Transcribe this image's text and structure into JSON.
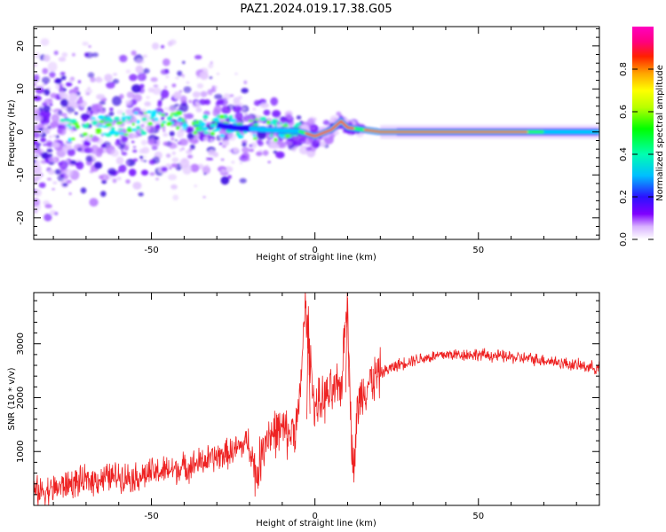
{
  "figure": {
    "title": "PAZ1.2024.019.17.38.G05"
  },
  "chart_data": [
    {
      "type": "heatmap",
      "xlabel": "Height of straight line (km)",
      "ylabel": "Frequency (Hz)",
      "xlim": [
        -86,
        87
      ],
      "ylim": [
        -25,
        24.5
      ],
      "xticks": [
        -50,
        0,
        50
      ],
      "yticks": [
        -20,
        -10,
        0,
        10,
        20
      ],
      "colorbar": {
        "label": "Normalized spectral amplitude",
        "range": [
          0,
          1
        ],
        "ticks": [
          "0.0",
          "0.2",
          "0.4",
          "0.6",
          "0.8"
        ],
        "tick_values": [
          0.0,
          0.2,
          0.4,
          0.6,
          0.8
        ],
        "colormap": "gist_ncar"
      },
      "ridge": [
        [
          -75,
          0.5
        ],
        [
          -65,
          1.5
        ],
        [
          -55,
          2.0
        ],
        [
          -45,
          2.5
        ],
        [
          -35,
          2.2
        ],
        [
          -25,
          1.0
        ],
        [
          -15,
          0.5
        ],
        [
          -10,
          0.3
        ],
        [
          -5,
          0.2
        ],
        [
          0,
          -1.0
        ],
        [
          5,
          0.5
        ],
        [
          8,
          2.5
        ],
        [
          10,
          1.0
        ],
        [
          15,
          0.5
        ],
        [
          20,
          0.0
        ],
        [
          30,
          0.0
        ],
        [
          50,
          0.0
        ],
        [
          70,
          0.0
        ],
        [
          87,
          0.0
        ]
      ],
      "grid": false
    },
    {
      "type": "line",
      "xlabel": "Height of straight line (km)",
      "ylabel": "SNR (10 * v/v)",
      "xlim": [
        -86,
        87
      ],
      "ylim": [
        0,
        3950
      ],
      "xticks": [
        -50,
        0,
        50
      ],
      "yticks": [
        1000,
        2000,
        3000
      ],
      "color": "#ee2222",
      "series": [
        {
          "x": [
            -86,
            -80,
            -75,
            -70,
            -65,
            -60,
            -55,
            -50,
            -45,
            -40,
            -35,
            -30,
            -25,
            -20,
            -18,
            -15,
            -10,
            -8,
            -5,
            -3,
            0,
            3,
            6,
            8,
            10,
            11,
            12,
            13,
            15,
            18,
            20,
            25,
            30,
            35,
            40,
            50,
            60,
            70,
            80,
            87
          ],
          "values": [
            250,
            300,
            400,
            450,
            500,
            550,
            520,
            600,
            650,
            700,
            800,
            900,
            1000,
            1200,
            500,
            1300,
            1400,
            1300,
            1600,
            3700,
            1800,
            2000,
            2100,
            2200,
            3950,
            1400,
            700,
            1800,
            2200,
            2350,
            2450,
            2600,
            2700,
            2750,
            2800,
            2800,
            2750,
            2700,
            2600,
            2550
          ]
        }
      ],
      "grid": false
    }
  ]
}
